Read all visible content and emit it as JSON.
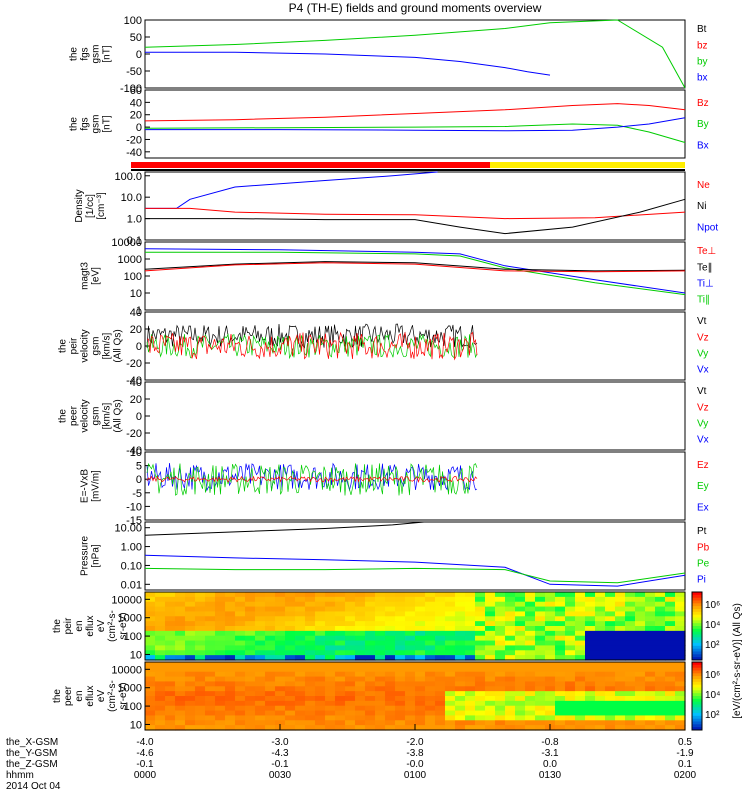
{
  "title": "P4 (TH-E) fields and ground moments overview",
  "date": "2014 Oct 04",
  "x_rows": [
    {
      "label": "the_X-GSM",
      "values": [
        "-4.0",
        "-3.0",
        "-2.0",
        "-0.8",
        "0.5"
      ]
    },
    {
      "label": "the_Y-GSM",
      "values": [
        "-4.6",
        "-4.3",
        "-3.8",
        "-3.1",
        "-1.9"
      ]
    },
    {
      "label": "the_Z-GSM",
      "values": [
        "-0.1",
        "-0.1",
        "-0.0",
        "0.0",
        "0.1"
      ]
    },
    {
      "label": "hhmm",
      "values": [
        "0000",
        "0030",
        "0100",
        "0130",
        "0200"
      ]
    }
  ],
  "colorbar_label": "[eV/(cm²-s-sr-eV)] (All Qs)",
  "colorbar_ticks": [
    "10⁶",
    "10⁴",
    "10²"
  ],
  "colors": {
    "red": "#ff0000",
    "green": "#00cc00",
    "blue": "#0000ff",
    "black": "#000000",
    "yellow": "#ffee00"
  },
  "chart_data": [
    {
      "id": "p1",
      "type": "line",
      "ylabel": [
        "the",
        "fgs",
        "gsm",
        "[nT]"
      ],
      "ylim": [
        -100,
        100
      ],
      "yticks": [
        {
          "v": 100,
          "t": "100"
        },
        {
          "v": 50,
          "t": "50"
        },
        {
          "v": 0,
          "t": "0"
        },
        {
          "v": -50,
          "t": "-50"
        },
        {
          "v": -100,
          "t": "-100"
        }
      ],
      "legend": [
        {
          "t": "Bt",
          "c": "black"
        },
        {
          "t": "bz",
          "c": "red"
        },
        {
          "t": "by",
          "c": "green"
        },
        {
          "t": "bx",
          "c": "blue"
        }
      ],
      "series": [
        {
          "name": "by",
          "color": "green",
          "x": [
            "0:00",
            "0:20",
            "0:40",
            "1:00",
            "1:20",
            "1:30",
            "1:45",
            "1:55",
            "2:00"
          ],
          "values": [
            20,
            28,
            40,
            55,
            75,
            92,
            120,
            20,
            -100
          ]
        },
        {
          "name": "bx",
          "color": "blue",
          "x": [
            "0:00",
            "0:20",
            "0:40",
            "1:00",
            "1:10",
            "1:20",
            "1:25",
            "1:30"
          ],
          "values": [
            5,
            5,
            0,
            -10,
            -22,
            -40,
            -52,
            -62
          ]
        }
      ]
    },
    {
      "id": "p2",
      "type": "line",
      "ylabel": [
        "the",
        "fgs",
        "gsm",
        "[nT]"
      ],
      "ylim": [
        -50,
        60
      ],
      "yticks": [
        {
          "v": 60,
          "t": "60"
        },
        {
          "v": 40,
          "t": "40"
        },
        {
          "v": 20,
          "t": "20"
        },
        {
          "v": 0,
          "t": "0"
        },
        {
          "v": -20,
          "t": "-20"
        },
        {
          "v": -40,
          "t": "-40"
        }
      ],
      "legend": [
        {
          "t": "Bz",
          "c": "red"
        },
        {
          "t": "By",
          "c": "green"
        },
        {
          "t": "Bx",
          "c": "blue"
        }
      ],
      "series": [
        {
          "name": "Bz",
          "color": "red",
          "x": [
            "0:00",
            "0:20",
            "0:40",
            "1:00",
            "1:20",
            "1:35",
            "1:45",
            "1:52",
            "2:00"
          ],
          "values": [
            10,
            12,
            16,
            22,
            28,
            35,
            38,
            35,
            28
          ]
        },
        {
          "name": "By",
          "color": "green",
          "x": [
            "0:00",
            "0:30",
            "1:00",
            "1:20",
            "1:35",
            "1:45",
            "1:52",
            "2:00"
          ],
          "values": [
            -2,
            -1,
            0,
            1,
            5,
            3,
            -8,
            -25
          ]
        },
        {
          "name": "Bx",
          "color": "blue",
          "x": [
            "0:00",
            "0:30",
            "1:00",
            "1:20",
            "1:35",
            "1:45",
            "1:52",
            "2:00"
          ],
          "values": [
            -4,
            -4,
            -5,
            -6,
            -5,
            0,
            5,
            15
          ]
        }
      ]
    },
    {
      "id": "p3",
      "type": "line",
      "scale": "log",
      "ylabel": [
        "Density",
        "[1/cc]",
        "[cm⁻³]"
      ],
      "ylim": [
        0.1,
        150
      ],
      "yticks": [
        {
          "v": 100,
          "t": "100.0"
        },
        {
          "v": 10,
          "t": "10.0"
        },
        {
          "v": 1,
          "t": "1.0"
        },
        {
          "v": 0.1,
          "t": "0.1"
        }
      ],
      "legend": [
        {
          "t": "Ne",
          "c": "red"
        },
        {
          "t": "Ni",
          "c": "black"
        },
        {
          "t": "Npot",
          "c": "blue"
        }
      ],
      "series": [
        {
          "name": "Npot",
          "color": "blue",
          "x": [
            "0:00",
            "0:07",
            "0:10",
            "0:20",
            "0:40",
            "0:55",
            "1:05"
          ],
          "values": [
            3,
            3,
            8,
            30,
            60,
            100,
            150
          ]
        },
        {
          "name": "Ne",
          "color": "red",
          "x": [
            "0:00",
            "0:10",
            "0:20",
            "0:40",
            "1:00",
            "1:20",
            "1:40",
            "2:00"
          ],
          "values": [
            3,
            3,
            2,
            1.6,
            1.5,
            1,
            1.1,
            2
          ]
        },
        {
          "name": "Ni",
          "color": "black",
          "x": [
            "0:00",
            "0:20",
            "0:40",
            "1:00",
            "1:10",
            "1:20",
            "1:35",
            "1:50",
            "2:00"
          ],
          "values": [
            1,
            1,
            0.9,
            0.9,
            0.4,
            0.2,
            0.4,
            2,
            8
          ]
        }
      ]
    },
    {
      "id": "p4",
      "type": "line",
      "scale": "log",
      "ylabel": [
        "magt3",
        "[eV]"
      ],
      "ylim": [
        1,
        10000
      ],
      "yticks": [
        {
          "v": 10000,
          "t": "10000"
        },
        {
          "v": 1000,
          "t": "1000"
        },
        {
          "v": 100,
          "t": "100"
        },
        {
          "v": 10,
          "t": "10"
        },
        {
          "v": 1,
          "t": "1"
        }
      ],
      "legend": [
        {
          "t": "Te⊥",
          "c": "red"
        },
        {
          "t": "Te∥",
          "c": "black"
        },
        {
          "t": "Ti⊥",
          "c": "blue"
        },
        {
          "t": "Ti∥",
          "c": "green"
        }
      ],
      "series": [
        {
          "name": "Ti⊥",
          "color": "blue",
          "x": [
            "0:00",
            "0:30",
            "1:00",
            "1:10",
            "1:20",
            "1:40",
            "2:00"
          ],
          "values": [
            4000,
            3500,
            2500,
            2000,
            400,
            60,
            10
          ]
        },
        {
          "name": "Ti∥",
          "color": "green",
          "x": [
            "0:00",
            "0:30",
            "1:00",
            "1:10",
            "1:20",
            "1:40",
            "2:00"
          ],
          "values": [
            2500,
            2500,
            2000,
            1500,
            300,
            40,
            8
          ]
        },
        {
          "name": "Te∥",
          "color": "black",
          "x": [
            "0:00",
            "0:20",
            "0:40",
            "1:00",
            "1:20",
            "1:40",
            "2:00"
          ],
          "values": [
            250,
            500,
            700,
            600,
            250,
            200,
            220
          ]
        },
        {
          "name": "Te⊥",
          "color": "red",
          "x": [
            "0:00",
            "0:20",
            "0:40",
            "1:00",
            "1:20",
            "1:40",
            "2:00"
          ],
          "values": [
            200,
            450,
            600,
            500,
            200,
            180,
            200
          ]
        }
      ]
    },
    {
      "id": "p5",
      "type": "line",
      "ylabel": [
        "the",
        "peir",
        "velocity",
        "gsm",
        "[km/s]",
        "(All Qs)"
      ],
      "ylim": [
        -40,
        40
      ],
      "yticks": [
        {
          "v": 40,
          "t": "40"
        },
        {
          "v": 20,
          "t": "20"
        },
        {
          "v": 0,
          "t": "0"
        },
        {
          "v": -20,
          "t": "-20"
        },
        {
          "v": -40,
          "t": "-40"
        }
      ],
      "legend": [
        {
          "t": "Vt",
          "c": "black"
        },
        {
          "t": "Vz",
          "c": "red"
        },
        {
          "t": "Vy",
          "c": "green"
        },
        {
          "t": "Vx",
          "c": "blue"
        }
      ],
      "noise": [
        {
          "c": "black",
          "base": 12,
          "amp": 14,
          "end": "1:14"
        },
        {
          "c": "green",
          "base": 0,
          "amp": 14,
          "end": "1:14"
        },
        {
          "c": "red",
          "base": 0,
          "amp": 16,
          "end": "1:14"
        }
      ]
    },
    {
      "id": "p6",
      "type": "line",
      "ylabel": [
        "the",
        "peer",
        "velocity",
        "gsm",
        "[km/s]",
        "(All Qs)"
      ],
      "ylim": [
        -40,
        40
      ],
      "yticks": [
        {
          "v": 40,
          "t": "40"
        },
        {
          "v": 20,
          "t": "20"
        },
        {
          "v": 0,
          "t": "0"
        },
        {
          "v": -20,
          "t": "-20"
        },
        {
          "v": -40,
          "t": "-40"
        }
      ],
      "legend": [
        {
          "t": "Vt",
          "c": "black"
        },
        {
          "t": "Vz",
          "c": "red"
        },
        {
          "t": "Vy",
          "c": "green"
        },
        {
          "t": "Vx",
          "c": "blue"
        }
      ]
    },
    {
      "id": "p7",
      "type": "line",
      "ylabel": [
        "E=-VxB",
        "[mV/m]"
      ],
      "ylim": [
        -15,
        10
      ],
      "yticks": [
        {
          "v": 10,
          "t": "10"
        },
        {
          "v": 5,
          "t": "5"
        },
        {
          "v": 0,
          "t": "0"
        },
        {
          "v": -5,
          "t": "-5"
        },
        {
          "v": -10,
          "t": "-10"
        },
        {
          "v": -15,
          "t": "-15"
        }
      ],
      "legend": [
        {
          "t": "Ez",
          "c": "red"
        },
        {
          "t": "Ey",
          "c": "green"
        },
        {
          "t": "Ex",
          "c": "blue"
        }
      ],
      "noise": [
        {
          "c": "blue",
          "base": 1,
          "amp": 5,
          "end": "1:14"
        },
        {
          "c": "green",
          "base": 0,
          "amp": 6,
          "end": "1:14"
        },
        {
          "c": "red",
          "base": 0,
          "amp": 1,
          "end": "1:14"
        }
      ]
    },
    {
      "id": "p8",
      "type": "line",
      "scale": "log",
      "ylabel": [
        "Pressure",
        "[nPa]"
      ],
      "ylim": [
        0.005,
        20
      ],
      "yticks": [
        {
          "v": 10,
          "t": "10.00"
        },
        {
          "v": 1,
          "t": "1.00"
        },
        {
          "v": 0.1,
          "t": "0.10"
        },
        {
          "v": 0.01,
          "t": "0.01"
        }
      ],
      "legend": [
        {
          "t": "Pt",
          "c": "black"
        },
        {
          "t": "Pb",
          "c": "red"
        },
        {
          "t": "Pe",
          "c": "green"
        },
        {
          "t": "Pi",
          "c": "blue"
        }
      ],
      "series": [
        {
          "name": "Pt",
          "color": "black",
          "x": [
            "0:00",
            "0:20",
            "0:40",
            "0:55",
            "1:02"
          ],
          "values": [
            4,
            6,
            9,
            14,
            20
          ]
        },
        {
          "name": "Pi",
          "color": "blue",
          "x": [
            "0:00",
            "0:20",
            "0:40",
            "1:00",
            "1:20",
            "1:30",
            "1:45",
            "2:00"
          ],
          "values": [
            0.35,
            0.25,
            0.2,
            0.15,
            0.08,
            0.01,
            0.008,
            0.03
          ]
        },
        {
          "name": "Pe",
          "color": "green",
          "x": [
            "0:00",
            "0:20",
            "0:40",
            "1:00",
            "1:20",
            "1:30",
            "1:45",
            "2:00"
          ],
          "values": [
            0.07,
            0.06,
            0.06,
            0.07,
            0.06,
            0.015,
            0.012,
            0.04
          ]
        }
      ]
    },
    {
      "id": "p9",
      "type": "heatmap",
      "ylabel": [
        "the",
        "peir",
        "en",
        "eflux",
        "eV",
        "(cm²-s-",
        "sr-eV)"
      ],
      "scale": "log",
      "ylim": [
        5,
        25000
      ],
      "yticks": [
        {
          "v": 10000,
          "t": "10000"
        },
        {
          "v": 1000,
          "t": "1000"
        },
        {
          "v": 100,
          "t": "100"
        },
        {
          "v": 10,
          "t": "10"
        }
      ]
    },
    {
      "id": "p10",
      "type": "heatmap",
      "ylabel": [
        "the",
        "peer",
        "en",
        "eflux",
        "eV",
        "(cm²-s-",
        "sr-eV)"
      ],
      "scale": "log",
      "ylim": [
        5,
        25000
      ],
      "yticks": [
        {
          "v": 10000,
          "t": "10000"
        },
        {
          "v": 1000,
          "t": "1000"
        },
        {
          "v": 100,
          "t": "100"
        },
        {
          "v": 10,
          "t": "10"
        }
      ]
    }
  ]
}
